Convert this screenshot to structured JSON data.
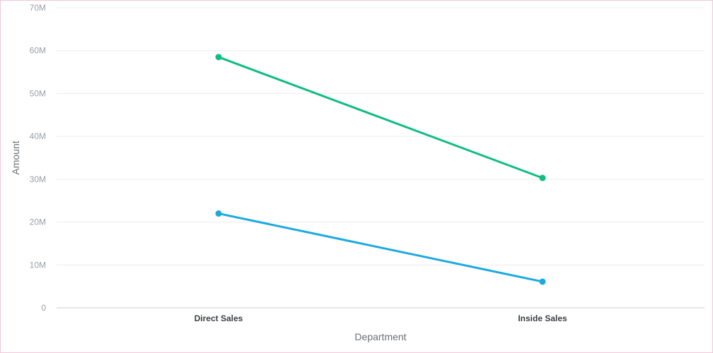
{
  "chart_data": {
    "type": "line",
    "xlabel": "Department",
    "ylabel": "Amount",
    "categories": [
      "Direct Sales",
      "Inside Sales"
    ],
    "ylim": [
      0,
      70000000
    ],
    "yticks": [
      {
        "value": 0,
        "label": "0"
      },
      {
        "value": 10000000,
        "label": "10M"
      },
      {
        "value": 20000000,
        "label": "20M"
      },
      {
        "value": 30000000,
        "label": "30M"
      },
      {
        "value": 40000000,
        "label": "40M"
      },
      {
        "value": 50000000,
        "label": "50M"
      },
      {
        "value": 60000000,
        "label": "60M"
      },
      {
        "value": 70000000,
        "label": "70M"
      }
    ],
    "grid": true,
    "series": [
      {
        "color": "#10bc84",
        "values": [
          58500000,
          30300000
        ]
      },
      {
        "color": "#1ba9e1",
        "values": [
          22000000,
          6100000
        ]
      }
    ]
  }
}
